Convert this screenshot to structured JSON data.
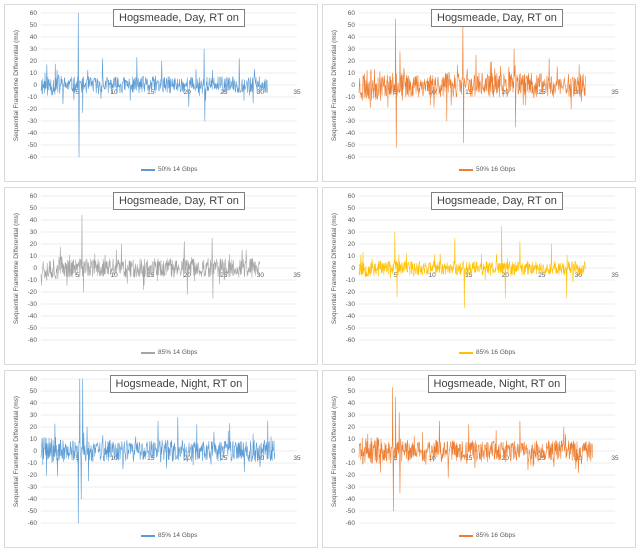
{
  "chart_data": [
    {
      "type": "line",
      "title": "Hogsmeade, Day, RT on",
      "ylabel": "Sequential Frametime Differential (ms)",
      "xlabel": "",
      "xlim": [
        0,
        35
      ],
      "ylim": [
        -60,
        60
      ],
      "x_ticks": [
        "5",
        "10",
        "15",
        "20",
        "25",
        "30",
        "35"
      ],
      "y_ticks": [
        "60",
        "50",
        "40",
        "30",
        "20",
        "10",
        "0",
        "-10",
        "-20",
        "-30",
        "-40",
        "-50",
        "-60"
      ],
      "series": [
        {
          "name": "50% 14 Gbps",
          "color": "#5b9bd5",
          "x_end": 31,
          "amplitude": 7,
          "seed": 11,
          "spikes": [
            [
              5.1,
              60
            ],
            [
              5.2,
              -60
            ],
            [
              5.7,
              -23
            ],
            [
              8.4,
              22
            ],
            [
              13.1,
              23
            ],
            [
              16.5,
              20
            ],
            [
              20.2,
              -18
            ],
            [
              22.3,
              30
            ],
            [
              22.4,
              -30
            ],
            [
              27.1,
              22
            ],
            [
              29.0,
              -15
            ]
          ]
        }
      ]
    },
    {
      "type": "line",
      "title": "Hogsmeade, Day, RT on",
      "ylabel": "Sequential Frametime Differential (ms)",
      "xlabel": "",
      "xlim": [
        0,
        35
      ],
      "ylim": [
        -60,
        60
      ],
      "x_ticks": [
        "5",
        "10",
        "15",
        "20",
        "25",
        "30",
        "35"
      ],
      "y_ticks": [
        "60",
        "50",
        "40",
        "30",
        "20",
        "10",
        "0",
        "-10",
        "-20",
        "-30",
        "-40",
        "-50",
        "-60"
      ],
      "series": [
        {
          "name": "50% 16 Gbps",
          "color": "#ed7d31",
          "x_end": 31,
          "amplitude": 10,
          "seed": 23,
          "spikes": [
            [
              5.0,
              55
            ],
            [
              5.1,
              -52
            ],
            [
              5.6,
              28
            ],
            [
              12.0,
              -30
            ],
            [
              14.2,
              50
            ],
            [
              14.3,
              -48
            ],
            [
              16.0,
              25
            ],
            [
              21.2,
              30
            ],
            [
              21.4,
              -35
            ],
            [
              26.0,
              22
            ],
            [
              29.0,
              -20
            ]
          ]
        }
      ]
    },
    {
      "type": "line",
      "title": "Hogsmeade, Day, RT on",
      "ylabel": "Sequential Frametime Differential (ms)",
      "xlabel": "",
      "xlim": [
        0,
        35
      ],
      "ylim": [
        -60,
        60
      ],
      "x_ticks": [
        "5",
        "10",
        "15",
        "20",
        "25",
        "30",
        "35"
      ],
      "y_ticks": [
        "60",
        "50",
        "40",
        "30",
        "20",
        "10",
        "0",
        "-10",
        "-20",
        "-30",
        "-40",
        "-50",
        "-60"
      ],
      "series": [
        {
          "name": "85% 14 Gbps",
          "color": "#a5a5a5",
          "x_end": 30,
          "amplitude": 8,
          "seed": 37,
          "spikes": [
            [
              5.6,
              44
            ],
            [
              5.8,
              -20
            ],
            [
              11.0,
              20
            ],
            [
              14.0,
              -18
            ],
            [
              19.6,
              22
            ],
            [
              20.0,
              -22
            ],
            [
              23.4,
              25
            ],
            [
              23.5,
              -25
            ],
            [
              27.5,
              15
            ]
          ]
        }
      ]
    },
    {
      "type": "line",
      "title": "Hogsmeade, Day, RT on",
      "ylabel": "Sequential Frametime Differential (ms)",
      "xlabel": "",
      "xlim": [
        0,
        35
      ],
      "ylim": [
        -60,
        60
      ],
      "x_ticks": [
        "5",
        "10",
        "15",
        "20",
        "25",
        "30",
        "35"
      ],
      "y_ticks": [
        "60",
        "50",
        "40",
        "30",
        "20",
        "10",
        "0",
        "-10",
        "-20",
        "-30",
        "-40",
        "-50",
        "-60"
      ],
      "series": [
        {
          "name": "85% 16 Gbps",
          "color": "#ffc000",
          "x_end": 31,
          "amplitude": 6,
          "seed": 53,
          "spikes": [
            [
              4.9,
              30
            ],
            [
              5.2,
              -24
            ],
            [
              13.1,
              25
            ],
            [
              14.4,
              -33
            ],
            [
              19.5,
              35
            ],
            [
              20.0,
              -25
            ],
            [
              22.0,
              22
            ],
            [
              26.3,
              20
            ],
            [
              28.4,
              -25
            ]
          ]
        }
      ]
    },
    {
      "type": "line",
      "title": "Hogsmeade, Night, RT on",
      "ylabel": "Sequential Frametime Differential (ms)",
      "xlabel": "",
      "xlim": [
        0,
        35
      ],
      "ylim": [
        -60,
        60
      ],
      "x_ticks": [
        "5",
        "10",
        "15",
        "20",
        "25",
        "30",
        "35"
      ],
      "y_ticks": [
        "60",
        "50",
        "40",
        "30",
        "20",
        "10",
        "0",
        "-10",
        "-20",
        "-30",
        "-40",
        "-50",
        "-60"
      ],
      "series": [
        {
          "name": "85% 14 Gbps",
          "color": "#5b9bd5",
          "x_end": 32,
          "amplitude": 9,
          "seed": 71,
          "spikes": [
            [
              5.1,
              -60
            ],
            [
              5.3,
              60
            ],
            [
              5.5,
              -40
            ],
            [
              5.7,
              60
            ],
            [
              6.3,
              20
            ],
            [
              6.5,
              -25
            ],
            [
              11.2,
              -15
            ],
            [
              16.0,
              25
            ],
            [
              18.7,
              28
            ],
            [
              21.3,
              22
            ],
            [
              25.8,
              23
            ],
            [
              31.0,
              25
            ]
          ]
        }
      ]
    },
    {
      "type": "line",
      "title": "Hogsmeade, Night, RT on",
      "ylabel": "Sequential Frametime Differential (ms)",
      "xlabel": "",
      "xlim": [
        0,
        35
      ],
      "ylim": [
        -60,
        60
      ],
      "x_ticks": [
        "5",
        "10",
        "15",
        "20",
        "25",
        "30",
        "35"
      ],
      "y_ticks": [
        "60",
        "50",
        "40",
        "30",
        "20",
        "10",
        "0",
        "-10",
        "-20",
        "-30",
        "-40",
        "-50",
        "-60"
      ],
      "series": [
        {
          "name": "85% 16 Gbps",
          "color": "#ed7d31",
          "x_end": 32,
          "amplitude": 9,
          "seed": 89,
          "spikes": [
            [
              4.6,
              53
            ],
            [
              4.7,
              -50
            ],
            [
              5.0,
              45
            ],
            [
              5.5,
              32
            ],
            [
              5.6,
              -35
            ],
            [
              11.0,
              25
            ],
            [
              12.2,
              -22
            ],
            [
              15.0,
              22
            ],
            [
              22.0,
              25
            ],
            [
              28.0,
              20
            ],
            [
              30.0,
              -18
            ]
          ]
        }
      ]
    }
  ]
}
